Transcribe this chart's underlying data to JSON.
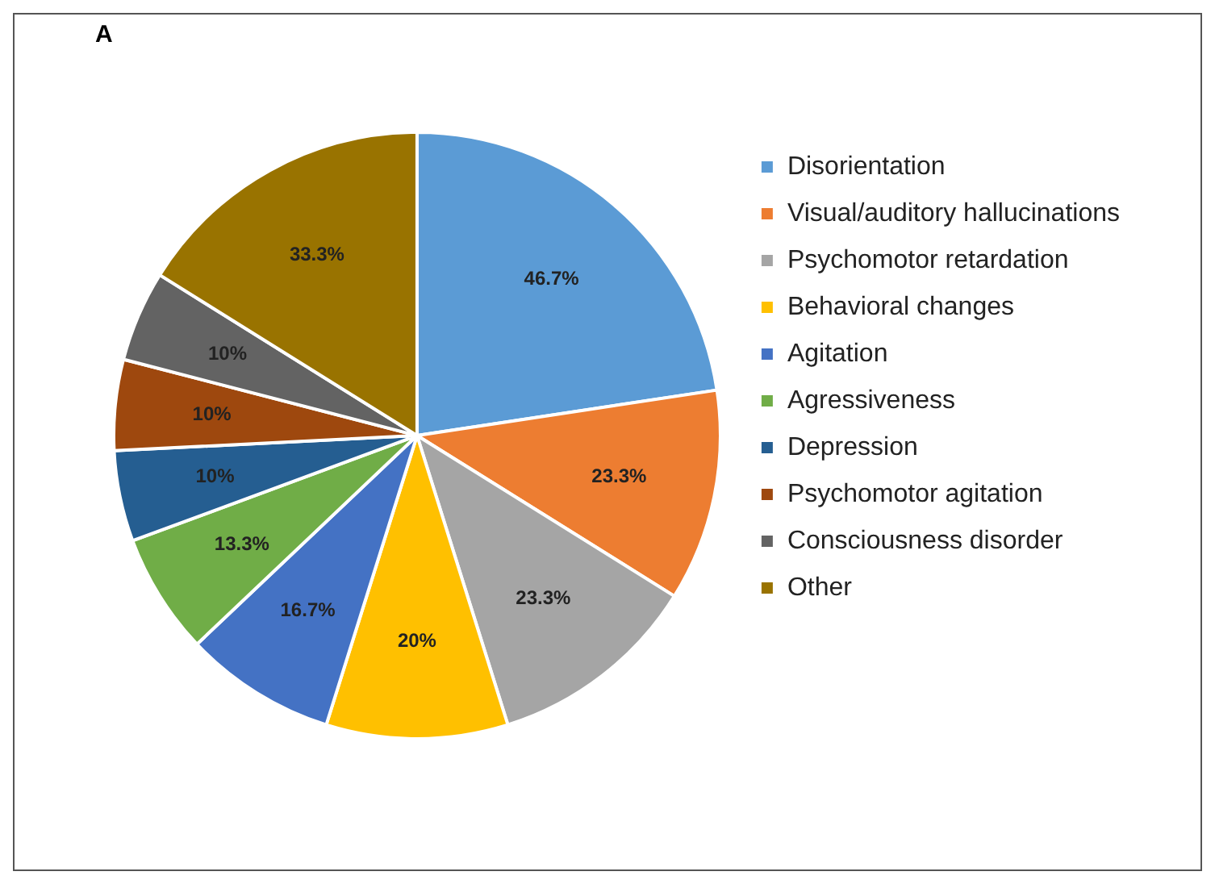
{
  "chart_data": {
    "type": "pie",
    "title": "A",
    "categories": [
      "Disorientation",
      "Visual/auditory hallucinations",
      "Psychomotor retardation",
      "Behavioral changes",
      "Agitation",
      "Agressiveness",
      "Depression",
      "Psychomotor agitation",
      "Consciousness disorder",
      "Other"
    ],
    "values": [
      46.7,
      23.3,
      23.3,
      20,
      16.7,
      13.3,
      10,
      10,
      10,
      33.3
    ],
    "colors": [
      "#5b9bd5",
      "#ed7d31",
      "#a5a5a5",
      "#ffc000",
      "#4472c4",
      "#70ad47",
      "#255e91",
      "#9e480e",
      "#636363",
      "#997300"
    ],
    "value_labels": [
      "46.7%",
      "23.3%",
      "23.3%",
      "20%",
      "16.7%",
      "13.3%",
      "10%",
      "10%",
      "10%",
      "33.3%"
    ],
    "legend": "right"
  }
}
